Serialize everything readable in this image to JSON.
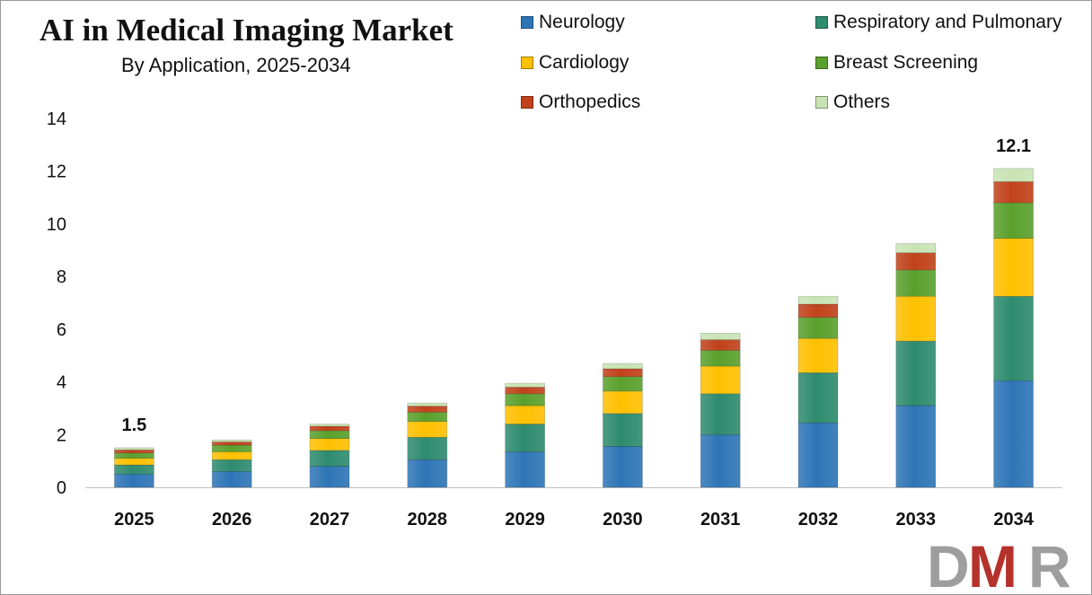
{
  "header": {
    "title": "AI in Medical Imaging Market",
    "subtitle": "By Application, 2025-2034"
  },
  "logo": {
    "text": "DMR",
    "colors": {
      "D": "#9e9e9e",
      "M": "#b5312c",
      "R": "#9e9e9e"
    }
  },
  "chart_data": {
    "type": "bar",
    "stacked": true,
    "title": "AI in Medical Imaging Market",
    "subtitle": "By Application, 2025-2034",
    "categories": [
      "2025",
      "2026",
      "2027",
      "2028",
      "2029",
      "2030",
      "2031",
      "2032",
      "2033",
      "2034"
    ],
    "yticks": [
      "0",
      "2",
      "4",
      "6",
      "8",
      "10",
      "12",
      "14"
    ],
    "ylim": [
      0,
      14
    ],
    "grid": false,
    "legend_position": "top-right",
    "series": [
      {
        "name": "Neurology",
        "color": "#2e75b6",
        "values": [
          0.5,
          0.6,
          0.8,
          1.05,
          1.35,
          1.55,
          2.0,
          2.45,
          3.1,
          4.05
        ]
      },
      {
        "name": "Respiratory and Pulmonary",
        "color": "#2e8b6e",
        "values": [
          0.35,
          0.45,
          0.6,
          0.85,
          1.05,
          1.25,
          1.55,
          1.9,
          2.45,
          3.2
        ]
      },
      {
        "name": "Cardiology",
        "color": "#ffc000",
        "values": [
          0.25,
          0.3,
          0.45,
          0.6,
          0.7,
          0.85,
          1.05,
          1.3,
          1.7,
          2.2
        ]
      },
      {
        "name": "Breast Screening",
        "color": "#5aa02c",
        "values": [
          0.2,
          0.25,
          0.3,
          0.35,
          0.45,
          0.55,
          0.6,
          0.8,
          1.0,
          1.35
        ]
      },
      {
        "name": "Orthopedics",
        "color": "#c0421b",
        "values": [
          0.12,
          0.12,
          0.17,
          0.23,
          0.25,
          0.3,
          0.4,
          0.5,
          0.65,
          0.8
        ]
      },
      {
        "name": "Others",
        "color": "#c9e4b4",
        "values": [
          0.08,
          0.08,
          0.08,
          0.12,
          0.15,
          0.2,
          0.25,
          0.3,
          0.35,
          0.5
        ]
      }
    ],
    "totals": [
      1.5,
      null,
      null,
      null,
      null,
      null,
      null,
      null,
      null,
      12.1
    ],
    "data_labels": [
      {
        "category": "2025",
        "text": "1.5"
      },
      {
        "category": "2034",
        "text": "12.1"
      }
    ]
  }
}
